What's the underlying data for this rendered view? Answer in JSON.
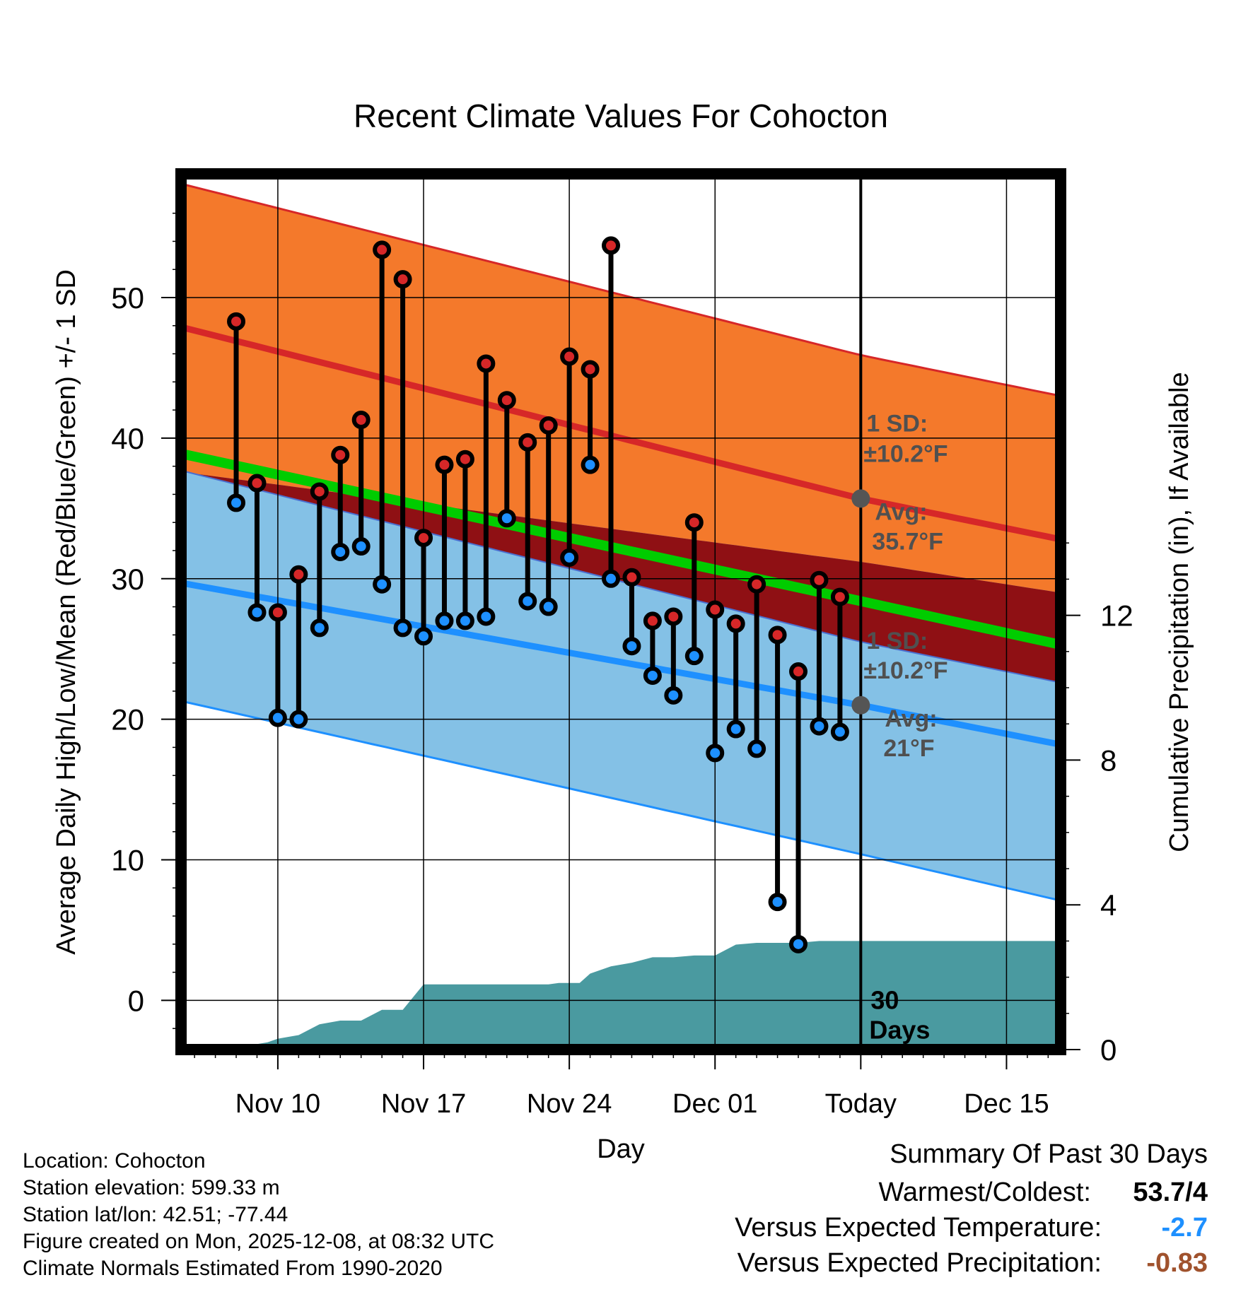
{
  "chart_data": {
    "type": "line",
    "title": "Recent Climate Values For Cohocton",
    "xlabel": "Day",
    "ylabel": "Average Daily High/Low/Mean (Red/Blue/Green) +/- 1 SD",
    "y2label": "Cumulative Precipitation (in), If Available",
    "ylim": [
      -3.5,
      58.8
    ],
    "y2lim": [
      0,
      24.2
    ],
    "xlim": [
      -0.65,
      41.6
    ],
    "yticks": [
      "0",
      "10",
      "20",
      "30",
      "40",
      "50"
    ],
    "y2ticks": [
      "0",
      "4",
      "8",
      "12"
    ],
    "xticks": [
      {
        "day": 4,
        "label": "Nov 10"
      },
      {
        "day": 11,
        "label": "Nov 17"
      },
      {
        "day": 18,
        "label": "Nov 24"
      },
      {
        "day": 25,
        "label": "Dec 01"
      },
      {
        "day": 32,
        "label": "Today"
      },
      {
        "day": 39,
        "label": "Dec 15"
      }
    ],
    "today_day": 32,
    "normals": {
      "days": [
        -0.65,
        32,
        41.6
      ],
      "high_mean": [
        47.9,
        35.7,
        32.8
      ],
      "high_upper": [
        58.1,
        45.9,
        43.0
      ],
      "high_lower": [
        37.7,
        25.5,
        22.6
      ],
      "low_mean": [
        29.7,
        21.0,
        18.2
      ],
      "low_upper": [
        37.6,
        31.2,
        29.0
      ],
      "low_lower": [
        21.3,
        10.4,
        7.1
      ],
      "mean": [
        38.9,
        28.4,
        25.3
      ]
    },
    "series": [
      {
        "name": "High",
        "color": "#d62728",
        "days": [
          2,
          3,
          4,
          5,
          6,
          7,
          8,
          9,
          10,
          11,
          12,
          13,
          14,
          15,
          16,
          17,
          18,
          19,
          20,
          21,
          22,
          23,
          24,
          25,
          26,
          27,
          28,
          29,
          30,
          31
        ],
        "values": [
          48.3,
          36.8,
          27.6,
          30.3,
          36.2,
          38.8,
          41.3,
          53.4,
          51.3,
          32.9,
          38.1,
          38.5,
          45.3,
          42.7,
          39.7,
          40.9,
          45.8,
          44.9,
          53.7,
          30.1,
          27.0,
          27.3,
          34.0,
          27.8,
          26.8,
          29.6,
          26.0,
          23.4,
          29.9,
          28.7
        ]
      },
      {
        "name": "Low",
        "color": "#1e90ff",
        "days": [
          2,
          3,
          4,
          5,
          6,
          7,
          8,
          9,
          10,
          11,
          12,
          13,
          14,
          15,
          16,
          17,
          18,
          19,
          20,
          21,
          22,
          23,
          24,
          25,
          26,
          27,
          28,
          29,
          30,
          31
        ],
        "values": [
          35.4,
          27.6,
          20.1,
          20.0,
          26.5,
          31.9,
          32.3,
          29.6,
          26.5,
          25.9,
          27.0,
          27.0,
          27.3,
          34.3,
          28.4,
          28.0,
          31.5,
          38.1,
          30.0,
          25.2,
          23.1,
          21.7,
          24.5,
          17.6,
          19.3,
          17.9,
          7.0,
          4.0,
          19.5,
          19.1
        ]
      },
      {
        "name": "Cumulative Precipitation",
        "color": "#4a9aa0",
        "days": [
          -0.65,
          1.2,
          2.0,
          3.0,
          3.5,
          4.0,
          5.0,
          6.0,
          7.0,
          8.0,
          9.0,
          10.0,
          11.0,
          12,
          13,
          14,
          15,
          16,
          17,
          17.5,
          18,
          18.5,
          19,
          20,
          21,
          22,
          23,
          24,
          25,
          26,
          27,
          28,
          29,
          30,
          31,
          32,
          41.6
        ],
        "values": [
          0,
          0,
          0.05,
          0.15,
          0.2,
          0.3,
          0.4,
          0.7,
          0.8,
          0.8,
          1.1,
          1.1,
          1.8,
          1.8,
          1.8,
          1.8,
          1.8,
          1.8,
          1.8,
          1.84,
          1.84,
          1.84,
          2.1,
          2.3,
          2.4,
          2.55,
          2.55,
          2.6,
          2.6,
          2.9,
          2.95,
          2.95,
          2.95,
          3.0,
          3.0,
          3.0,
          3.0
        ]
      }
    ],
    "annotations": {
      "high_sd_line1": "1 SD:",
      "high_sd_line2": "±10.2°F",
      "high_avg_line1": "Avg:",
      "high_avg_line2": "35.7°F",
      "low_sd_line1": "1 SD:",
      "low_sd_line2": "±10.2°F",
      "low_avg_line1": "Avg:",
      "low_avg_line2": "21°F",
      "days_line1": "30",
      "days_line2": "Days"
    },
    "colors": {
      "high_band": "#f4792b",
      "high_line": "#d62728",
      "low_band": "#84c1e6",
      "low_line": "#1e90ff",
      "overlap_band": "#8f1014",
      "mean_line": "#00cc00",
      "precip": "#4a9aa0"
    }
  },
  "info": {
    "location": "Location: Cohocton",
    "elevation": "Station elevation: 599.33 m",
    "latlon": "Station lat/lon: 42.51; -77.44",
    "created": "Figure created on Mon, 2025-12-08, at 08:32 UTC",
    "normals": "Climate Normals Estimated From 1990-2020"
  },
  "summary": {
    "title": "Summary Of Past 30 Days",
    "warmest_label": "Warmest/Coldest:",
    "warmest_value": "53.7/4",
    "temp_label": "Versus Expected Temperature:",
    "temp_value": "-2.7",
    "temp_color": "#1e90ff",
    "precip_label": "Versus Expected Precipitation:",
    "precip_value": "-0.83",
    "precip_color": "#a0522d"
  }
}
